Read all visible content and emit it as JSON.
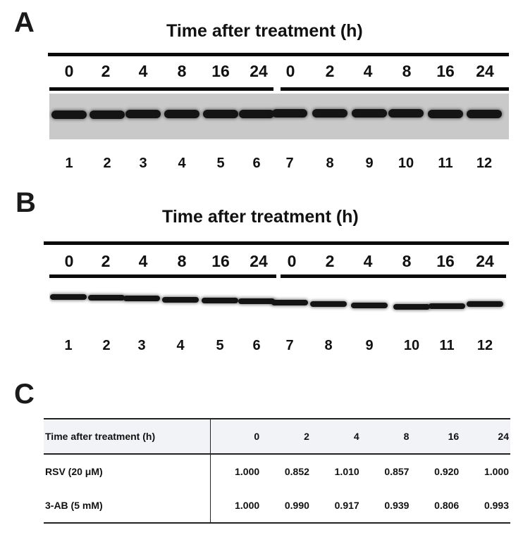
{
  "panel_a": {
    "letter": "A",
    "title": "Time after treatment (h)",
    "time_labels": [
      "0",
      "2",
      "4",
      "8",
      "16",
      "24",
      "0",
      "2",
      "4",
      "8",
      "16",
      "24"
    ],
    "lane_labels": [
      "1",
      "2",
      "3",
      "4",
      "5",
      "6",
      "7",
      "8",
      "9",
      "10",
      "11",
      "12"
    ]
  },
  "panel_b": {
    "letter": "B",
    "title": "Time after treatment (h)",
    "time_labels": [
      "0",
      "2",
      "4",
      "8",
      "16",
      "24",
      "0",
      "2",
      "4",
      "8",
      "16",
      "24"
    ],
    "lane_labels": [
      "1",
      "2",
      "3",
      "4",
      "5",
      "6",
      "7",
      "8",
      "9",
      "10",
      "11",
      "12"
    ]
  },
  "panel_c": {
    "letter": "C",
    "table": {
      "header": [
        "Time after treatment (h)",
        "0",
        "2",
        "4",
        "8",
        "16",
        "24"
      ],
      "rows": [
        [
          "RSV (20 μM)",
          "1.000",
          "0.852",
          "1.010",
          "0.857",
          "0.920",
          "1.000"
        ],
        [
          "3-AB (5 mM)",
          "1.000",
          "0.990",
          "0.917",
          "0.939",
          "0.806",
          "0.993"
        ]
      ]
    }
  },
  "colors": {
    "band": "#141414",
    "blot_a_bg": "#c9c9c9",
    "blot_b_bg": "#ffffff",
    "table_header_bg": "#f1f3f7"
  }
}
